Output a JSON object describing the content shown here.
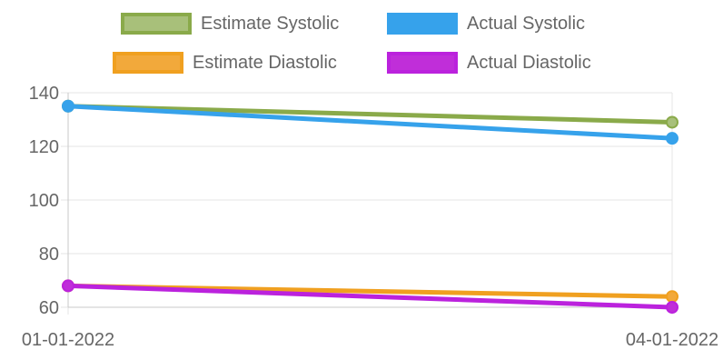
{
  "chart_data": {
    "type": "line",
    "categories": [
      "01-01-2022",
      "04-01-2022"
    ],
    "series": [
      {
        "name": "Estimate Systolic",
        "values": [
          135,
          129
        ],
        "color": "#8aaa4a",
        "fill": "#a8c07a"
      },
      {
        "name": "Actual Systolic",
        "values": [
          135,
          123
        ],
        "color": "#36a2eb",
        "fill": "#36a2eb"
      },
      {
        "name": "Estimate Diastolic",
        "values": [
          68,
          64
        ],
        "color": "#f0a020",
        "fill": "#f2a93b"
      },
      {
        "name": "Actual Diastolic",
        "values": [
          68,
          60
        ],
        "color": "#bb22dd",
        "fill": "#c02ed9"
      }
    ],
    "yticks": [
      60,
      80,
      100,
      120,
      140
    ],
    "ylim": [
      60,
      140
    ],
    "grid": true,
    "legend": "top"
  }
}
